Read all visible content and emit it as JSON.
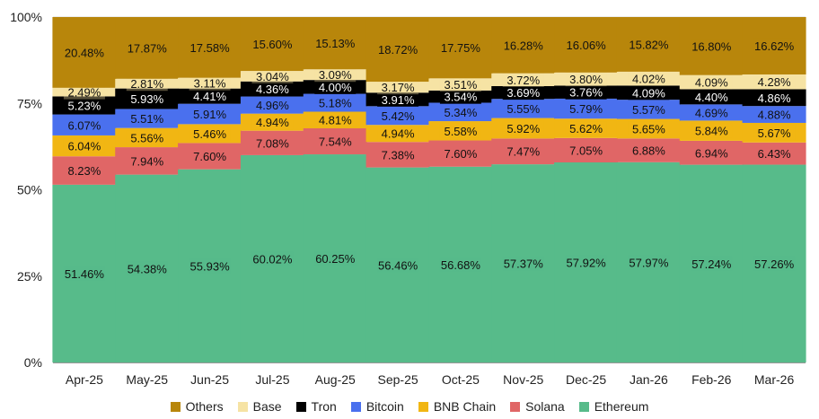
{
  "chart_data": {
    "type": "bar",
    "stacked": true,
    "categories": [
      "Apr-25",
      "May-25",
      "Jun-25",
      "Jul-25",
      "Aug-25",
      "Sep-25",
      "Oct-25",
      "Nov-25",
      "Dec-25",
      "Jan-26",
      "Feb-26",
      "Mar-26"
    ],
    "y_ticks": [
      "0%",
      "25%",
      "50%",
      "75%",
      "100%"
    ],
    "ylim": [
      0,
      100
    ],
    "legend_position": "bottom",
    "series": [
      {
        "name": "Ethereum",
        "color": "#57bb8a",
        "values": [
          51.46,
          54.38,
          55.93,
          60.02,
          60.25,
          56.46,
          56.68,
          57.37,
          57.92,
          57.97,
          57.24,
          57.26
        ],
        "labels": [
          "51.46%",
          "54.38%",
          "55.93%",
          "60.02%",
          "60.25%",
          "56.46%",
          "56.68%",
          "57.37%",
          "57.92%",
          "57.97%",
          "57.24%",
          "57.26%"
        ]
      },
      {
        "name": "Solana",
        "color": "#e06666",
        "values": [
          8.23,
          7.94,
          7.6,
          7.08,
          7.54,
          7.38,
          7.6,
          7.47,
          7.05,
          6.88,
          6.94,
          6.43
        ],
        "labels": [
          "8.23%",
          "7.94%",
          "7.60%",
          "7.08%",
          "7.54%",
          "7.38%",
          "7.60%",
          "7.47%",
          "7.05%",
          "6.88%",
          "6.94%",
          "6.43%"
        ]
      },
      {
        "name": "BNB Chain",
        "color": "#f1b613",
        "values": [
          6.04,
          5.56,
          5.46,
          4.94,
          4.81,
          4.94,
          5.58,
          5.92,
          5.62,
          5.65,
          5.84,
          5.67
        ],
        "labels": [
          "6.04%",
          "5.56%",
          "5.46%",
          "4.94%",
          "4.81%",
          "4.94%",
          "5.58%",
          "5.92%",
          "5.62%",
          "5.65%",
          "5.84%",
          "5.67%"
        ]
      },
      {
        "name": "Bitcoin",
        "color": "#4a70ee",
        "values": [
          6.07,
          5.51,
          5.91,
          4.96,
          5.18,
          5.42,
          5.34,
          5.55,
          5.79,
          5.57,
          4.69,
          4.88
        ],
        "labels": [
          "6.07%",
          "5.51%",
          "5.91%",
          "4.96%",
          "5.18%",
          "5.42%",
          "5.34%",
          "5.55%",
          "5.79%",
          "5.57%",
          "4.69%",
          "4.88%"
        ]
      },
      {
        "name": "Tron",
        "color": "#000000",
        "values": [
          5.23,
          5.93,
          4.41,
          4.36,
          4.0,
          3.91,
          3.54,
          3.69,
          3.76,
          4.09,
          4.4,
          4.86
        ],
        "labels": [
          "5.23%",
          "5.93%",
          "4.41%",
          "4.36%",
          "4.00%",
          "3.91%",
          "3.54%",
          "3.69%",
          "3.76%",
          "4.09%",
          "4.40%",
          "4.86%"
        ]
      },
      {
        "name": "Base",
        "color": "#f6e3a4",
        "values": [
          2.49,
          2.81,
          3.11,
          3.04,
          3.09,
          3.17,
          3.51,
          3.72,
          3.8,
          4.02,
          4.09,
          4.28
        ],
        "labels": [
          "2.49%",
          "2.81%",
          "3.11%",
          "3.04%",
          "3.09%",
          "3.17%",
          "3.51%",
          "3.72%",
          "3.80%",
          "4.02%",
          "4.09%",
          "4.28%"
        ]
      },
      {
        "name": "Others",
        "color": "#b8860b",
        "values": [
          20.48,
          17.87,
          17.58,
          15.6,
          15.13,
          18.72,
          17.75,
          16.28,
          16.06,
          15.82,
          16.8,
          16.62
        ],
        "labels": [
          "20.48%",
          "17.87%",
          "17.58%",
          "15.60%",
          "15.13%",
          "18.72%",
          "17.75%",
          "16.28%",
          "16.06%",
          "15.82%",
          "16.80%",
          "16.62%"
        ]
      }
    ],
    "legend_order": [
      "Others",
      "Base",
      "Tron",
      "Bitcoin",
      "BNB Chain",
      "Solana",
      "Ethereum"
    ]
  }
}
